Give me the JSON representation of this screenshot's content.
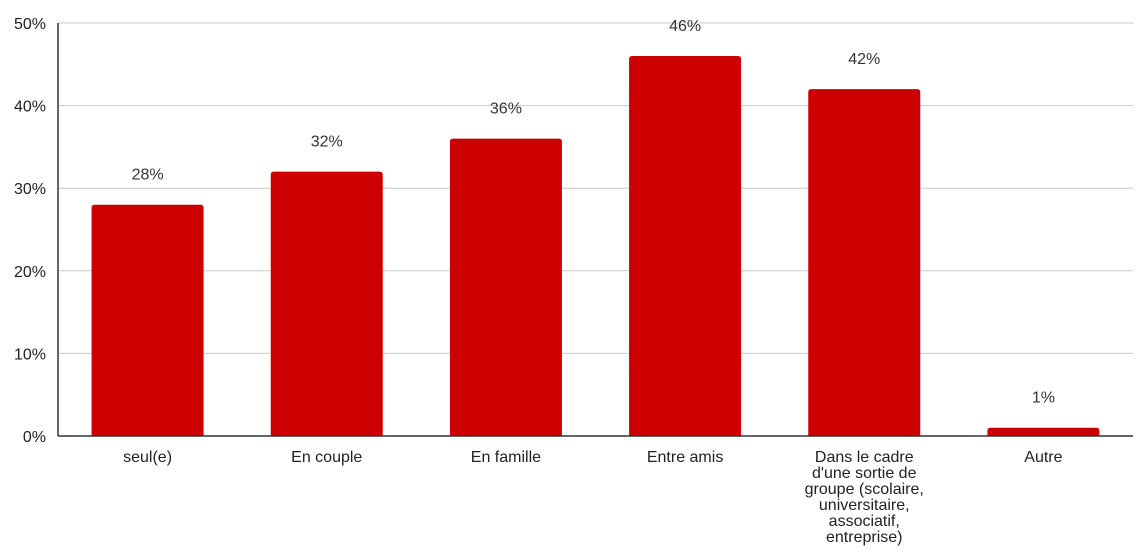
{
  "chart_data": {
    "type": "bar",
    "categories": [
      [
        "seul(e)"
      ],
      [
        "En couple"
      ],
      [
        "En famille"
      ],
      [
        "Entre amis"
      ],
      [
        "Dans le cadre",
        "d'une sortie de",
        "groupe (scolaire,",
        "universitaire,",
        "associatif,",
        "entreprise)"
      ],
      [
        "Autre"
      ]
    ],
    "values": [
      28,
      32,
      36,
      46,
      42,
      1
    ],
    "data_labels": [
      "28%",
      "32%",
      "36%",
      "46%",
      "42%",
      "1%"
    ],
    "ylim": [
      0,
      50
    ],
    "yticks": [
      0,
      10,
      20,
      30,
      40,
      50
    ],
    "ytick_labels": [
      "0%",
      "10%",
      "20%",
      "30%",
      "40%",
      "50%"
    ],
    "grid": true,
    "bar_color": "#cc0000",
    "grid_color": "#cccccc",
    "axis_color": "#333333",
    "title": "",
    "xlabel": "",
    "ylabel": ""
  }
}
